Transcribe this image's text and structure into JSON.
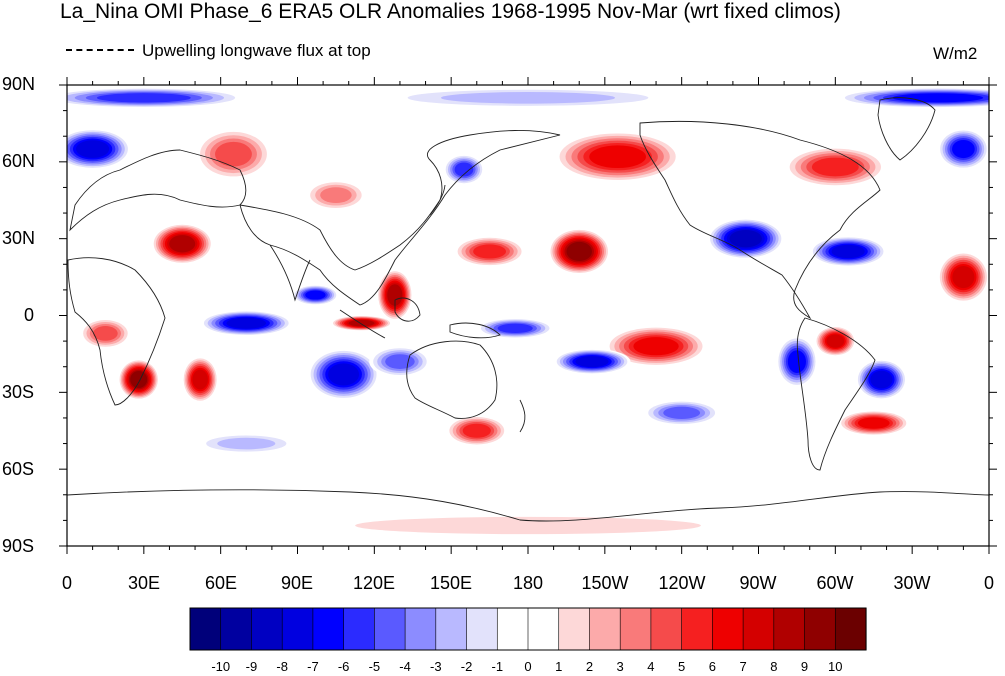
{
  "title": "La_Nina OMI Phase_6 ERA5 OLR Anomalies 1968-1995 Nov-Mar (wrt fixed climos)",
  "legend_text": "Upwelling longwave flux at top",
  "units": "W/m2",
  "lat_ticks": [
    "90N",
    "60N",
    "30N",
    "0",
    "30S",
    "60S",
    "90S"
  ],
  "lon_ticks": [
    "0",
    "30E",
    "60E",
    "90E",
    "120E",
    "150E",
    "180",
    "150W",
    "120W",
    "90W",
    "60W",
    "30W",
    "0"
  ],
  "colorbar": {
    "labels": [
      "-10",
      "-9",
      "-8",
      "-7",
      "-6",
      "-5",
      "-4",
      "-3",
      "-2",
      "-1",
      "0",
      "1",
      "2",
      "3",
      "4",
      "5",
      "6",
      "7",
      "8",
      "9",
      "10"
    ],
    "colors": [
      "#00007a",
      "#0000a0",
      "#0000c2",
      "#0000e0",
      "#0000ff",
      "#2b2bff",
      "#5a5aff",
      "#8c8cff",
      "#b9b9ff",
      "#e2e2fb",
      "#ffffff",
      "#ffffff",
      "#fdd8d8",
      "#fcaaaa",
      "#f97a7a",
      "#f54b4b",
      "#f52020",
      "#ee0000",
      "#d40000",
      "#b00000",
      "#8f0000",
      "#6b0000"
    ]
  },
  "map": {
    "lon_range": [
      0,
      360
    ],
    "lat_range": [
      -90,
      90
    ],
    "anomaly_features": [
      {
        "lon": 10,
        "lat": 65,
        "rx": 15,
        "ry": 8,
        "value": -8
      },
      {
        "lon": 65,
        "lat": 63,
        "rx": 15,
        "ry": 10,
        "value": 5
      },
      {
        "lon": 45,
        "lat": 28,
        "rx": 12,
        "ry": 8,
        "value": 9
      },
      {
        "lon": 105,
        "lat": 47,
        "rx": 12,
        "ry": 6,
        "value": 4
      },
      {
        "lon": 155,
        "lat": 57,
        "rx": 8,
        "ry": 6,
        "value": -6
      },
      {
        "lon": 128,
        "lat": 8,
        "rx": 7,
        "ry": 10,
        "value": 9
      },
      {
        "lon": 97,
        "lat": 8,
        "rx": 9,
        "ry": 4,
        "value": -7
      },
      {
        "lon": 115,
        "lat": -3,
        "rx": 12,
        "ry": 3,
        "value": 9
      },
      {
        "lon": 70,
        "lat": -3,
        "rx": 18,
        "ry": 5,
        "value": -8
      },
      {
        "lon": 15,
        "lat": -7,
        "rx": 10,
        "ry": 6,
        "value": 5
      },
      {
        "lon": 28,
        "lat": -25,
        "rx": 8,
        "ry": 8,
        "value": 10
      },
      {
        "lon": 52,
        "lat": -25,
        "rx": 7,
        "ry": 9,
        "value": 8
      },
      {
        "lon": 108,
        "lat": -23,
        "rx": 14,
        "ry": 10,
        "value": -8
      },
      {
        "lon": 130,
        "lat": -18,
        "rx": 12,
        "ry": 6,
        "value": -5
      },
      {
        "lon": 200,
        "lat": 25,
        "rx": 12,
        "ry": 9,
        "value": 10
      },
      {
        "lon": 165,
        "lat": 25,
        "rx": 14,
        "ry": 6,
        "value": 6
      },
      {
        "lon": 215,
        "lat": 62,
        "rx": 25,
        "ry": 10,
        "value": 7
      },
      {
        "lon": 300,
        "lat": 58,
        "rx": 20,
        "ry": 8,
        "value": 6
      },
      {
        "lon": 265,
        "lat": 30,
        "rx": 15,
        "ry": 8,
        "value": -9
      },
      {
        "lon": 305,
        "lat": 25,
        "rx": 15,
        "ry": 6,
        "value": -8
      },
      {
        "lon": 350,
        "lat": 15,
        "rx": 10,
        "ry": 10,
        "value": 8
      },
      {
        "lon": 230,
        "lat": -12,
        "rx": 20,
        "ry": 8,
        "value": 7
      },
      {
        "lon": 205,
        "lat": -18,
        "rx": 15,
        "ry": 5,
        "value": -8
      },
      {
        "lon": 175,
        "lat": -5,
        "rx": 15,
        "ry": 4,
        "value": -6
      },
      {
        "lon": 285,
        "lat": -18,
        "rx": 8,
        "ry": 10,
        "value": -7
      },
      {
        "lon": 300,
        "lat": -10,
        "rx": 8,
        "ry": 6,
        "value": 8
      },
      {
        "lon": 318,
        "lat": -25,
        "rx": 10,
        "ry": 8,
        "value": -8
      },
      {
        "lon": 315,
        "lat": -42,
        "rx": 14,
        "ry": 5,
        "value": 7
      },
      {
        "lon": 160,
        "lat": -45,
        "rx": 12,
        "ry": 6,
        "value": 6
      },
      {
        "lon": 240,
        "lat": -38,
        "rx": 15,
        "ry": 5,
        "value": -5
      },
      {
        "lon": 340,
        "lat": 85,
        "rx": 40,
        "ry": 4,
        "value": -7
      },
      {
        "lon": 30,
        "lat": 85,
        "rx": 40,
        "ry": 4,
        "value": -6
      },
      {
        "lon": 180,
        "lat": 85,
        "rx": 60,
        "ry": 4,
        "value": -3
      },
      {
        "lon": 180,
        "lat": -82,
        "rx": 100,
        "ry": 5,
        "value": 2
      },
      {
        "lon": 70,
        "lat": -50,
        "rx": 20,
        "ry": 4,
        "value": -3
      },
      {
        "lon": 350,
        "lat": 65,
        "rx": 10,
        "ry": 8,
        "value": -7
      }
    ]
  }
}
